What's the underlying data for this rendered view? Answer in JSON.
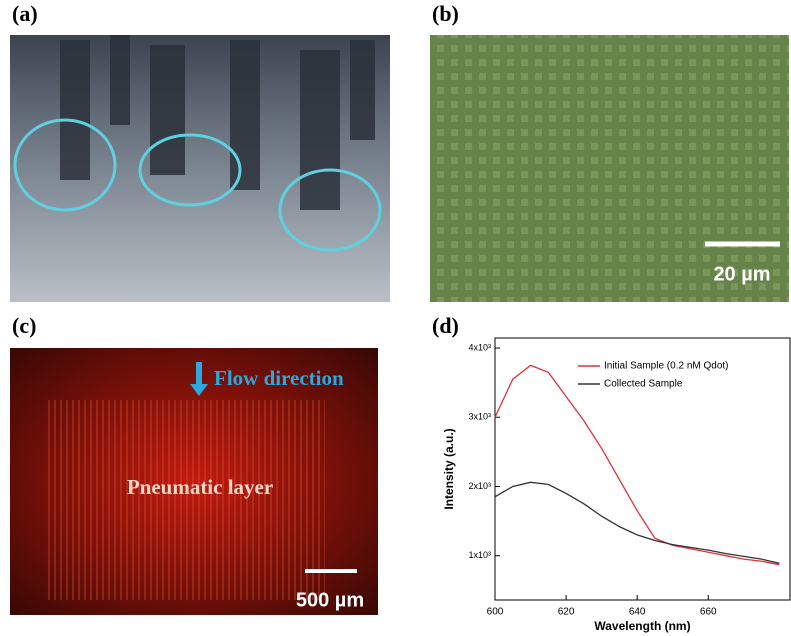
{
  "panels": {
    "a": {
      "label": "(a)"
    },
    "b": {
      "label": "(b)",
      "scale_bar": "20 µm"
    },
    "c": {
      "label": "(c)",
      "flow": "Flow direction",
      "layer": "Pneumatic layer",
      "scale_bar": "500 µm"
    },
    "d": {
      "label": "(d)"
    }
  },
  "chart_data": {
    "type": "line",
    "x_label": "Wavelength (nm)",
    "y_label": "Intensity (a.u.)",
    "x": [
      600,
      605,
      610,
      615,
      620,
      625,
      630,
      635,
      640,
      645,
      650,
      655,
      660,
      665,
      670,
      675,
      680
    ],
    "series": [
      {
        "name": "Initial Sample (0.2 nM Qdot)",
        "color": "#e0303a",
        "values": [
          3000,
          3550,
          3750,
          3650,
          3300,
          2950,
          2550,
          2100,
          1650,
          1250,
          1150,
          1100,
          1050,
          1000,
          950,
          920,
          870
        ]
      },
      {
        "name": "Collected Sample",
        "color": "#333333",
        "values": [
          1850,
          2000,
          2060,
          2030,
          1900,
          1750,
          1570,
          1420,
          1300,
          1220,
          1160,
          1120,
          1080,
          1030,
          990,
          950,
          890
        ]
      }
    ],
    "xlim": [
      600,
      683
    ],
    "ylim": [
      360,
      4145
    ],
    "xticks": [
      600,
      620,
      640,
      660
    ],
    "yticks": [
      {
        "value": 1000,
        "label": "1x10³"
      },
      {
        "value": 2000,
        "label": "2x10³"
      },
      {
        "value": 3000,
        "label": "3x10³"
      },
      {
        "value": 4000,
        "label": "4x10³"
      }
    ]
  }
}
